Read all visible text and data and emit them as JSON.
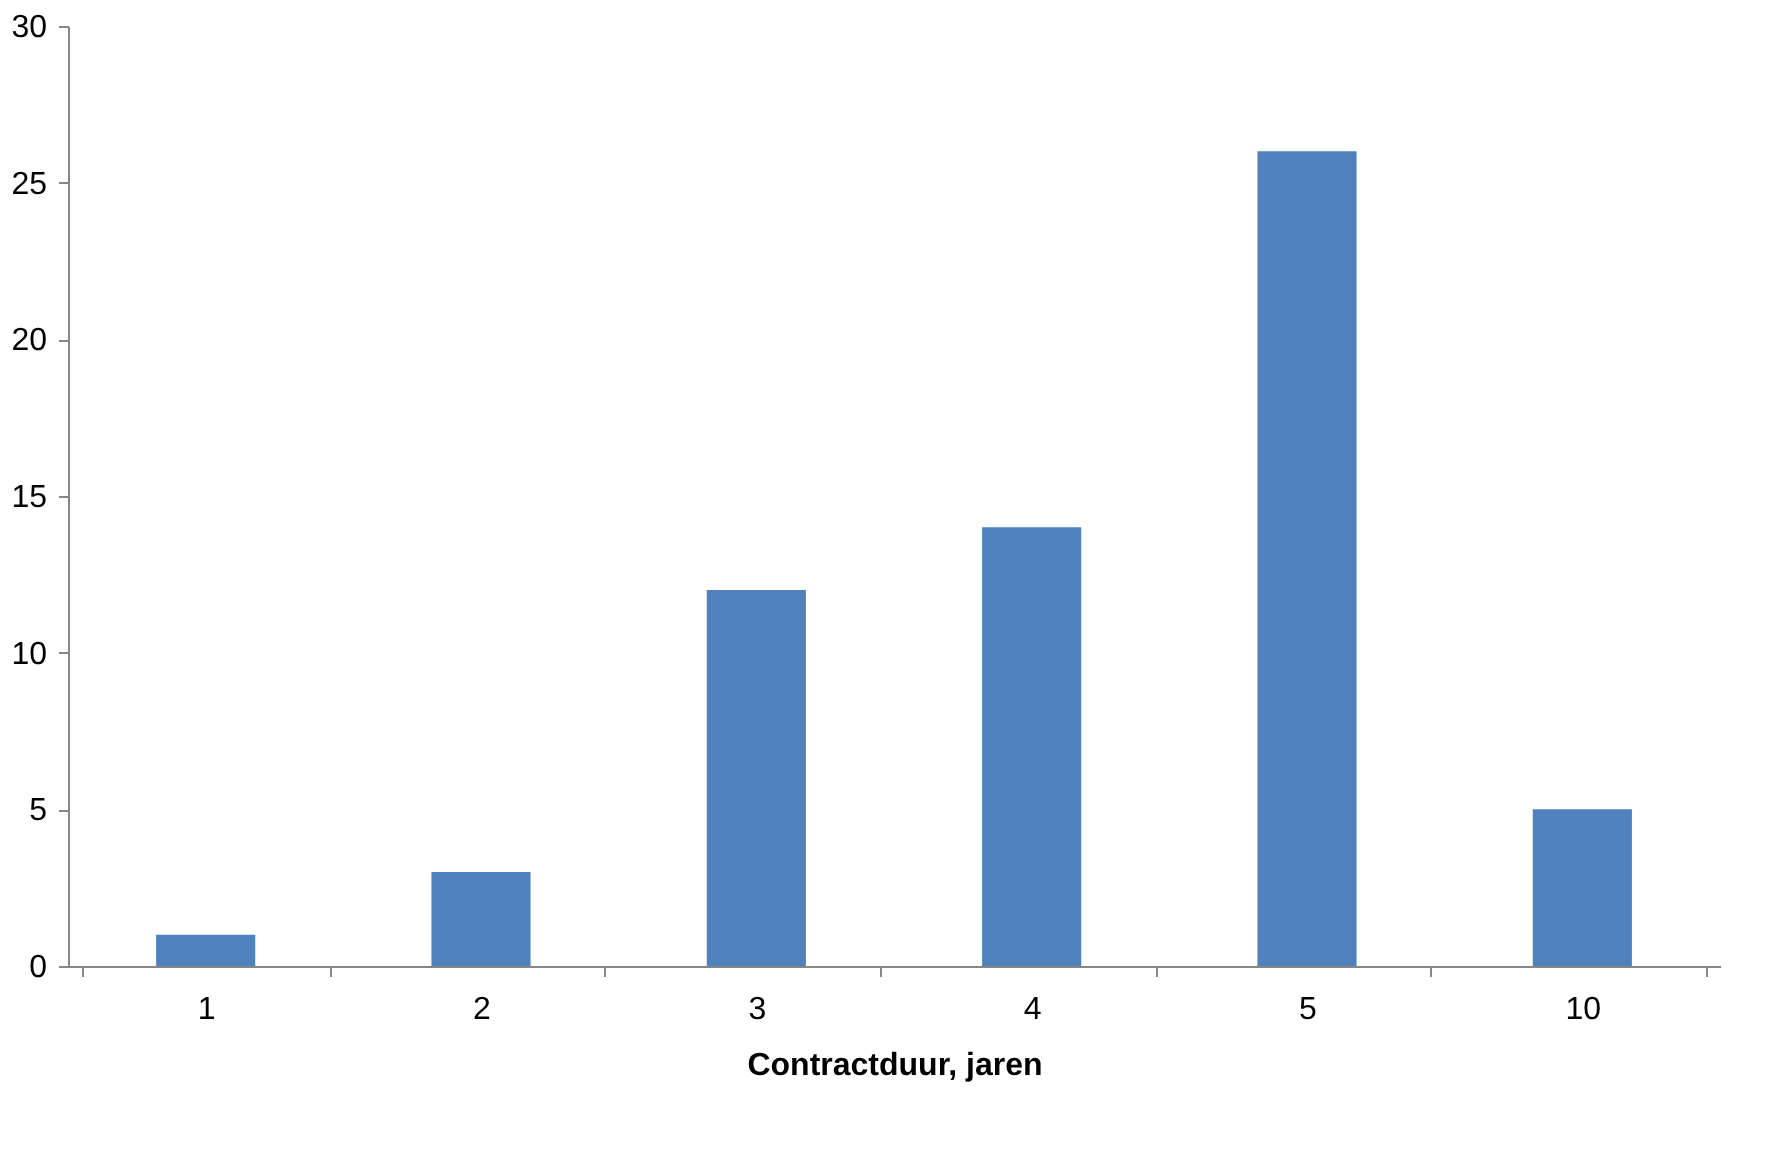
{
  "chart_data": {
    "type": "bar",
    "xlabel": "Contractduur, jaren",
    "categories": [
      "1",
      "2",
      "3",
      "4",
      "5",
      "10"
    ],
    "values": [
      1,
      3,
      12,
      14,
      26,
      5
    ],
    "color": "#4f81bd",
    "ylim": [
      0,
      30
    ],
    "yticks": [
      0,
      5,
      10,
      15,
      20,
      25,
      30
    ],
    "grid": false
  }
}
